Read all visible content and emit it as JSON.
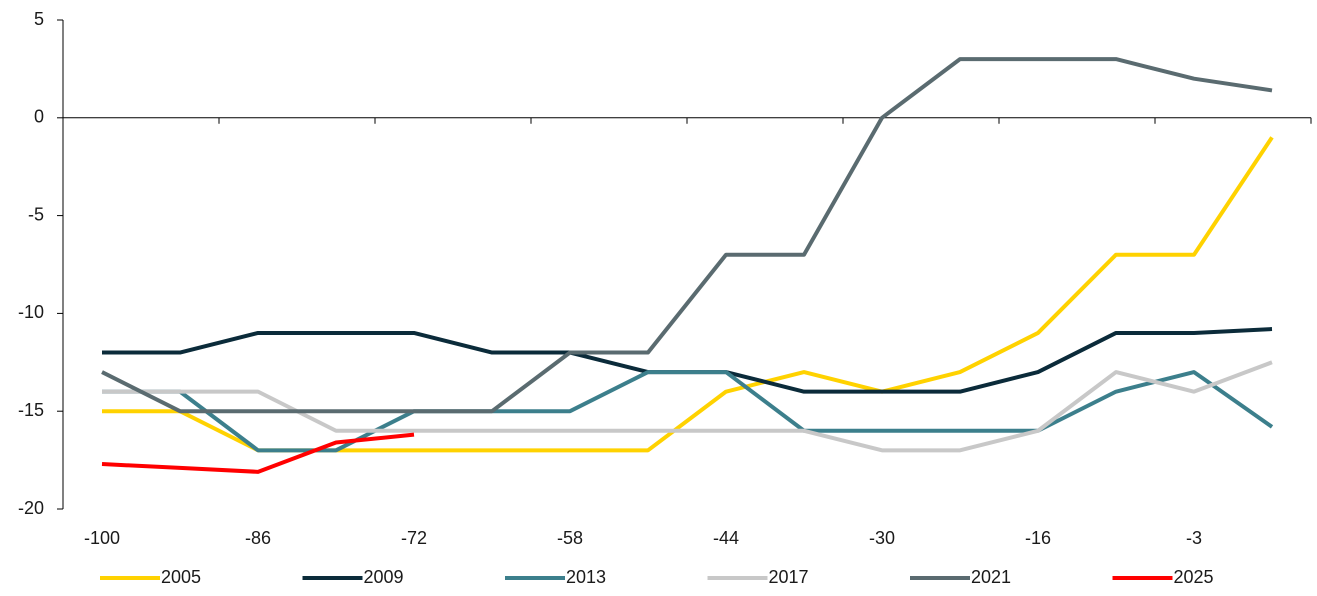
{
  "chart_data": {
    "type": "line",
    "categories": [
      "-100",
      null,
      "-86",
      null,
      "-72",
      null,
      "-58",
      null,
      "-44",
      null,
      "-30",
      null,
      "-16",
      null,
      "-3",
      null
    ],
    "series": [
      {
        "name": "2005",
        "color": "#FFD200",
        "values": [
          -15,
          -15,
          -17,
          -17,
          -17,
          -17,
          -17,
          -17,
          -14,
          -13,
          -14,
          -13,
          -11,
          -7,
          -7,
          -1
        ]
      },
      {
        "name": "2009",
        "color": "#0B2B3A",
        "values": [
          -12,
          -12,
          -11,
          -11,
          -11,
          -12,
          -12,
          -13,
          -13,
          -14,
          -14,
          -14,
          -13,
          -11,
          -11,
          -10.8
        ]
      },
      {
        "name": "2013",
        "color": "#3C7F8C",
        "values": [
          -14,
          -14,
          -17,
          -17,
          -15,
          -15,
          -15,
          -13,
          -13,
          -16,
          -16,
          -16,
          -16,
          -14,
          -13,
          -15.8
        ]
      },
      {
        "name": "2017",
        "color": "#C8C8C8",
        "values": [
          -14,
          -14,
          -14,
          -16,
          -16,
          -16,
          -16,
          -16,
          -16,
          -16,
          -17,
          -17,
          -16,
          -13,
          -14,
          -12.5
        ]
      },
      {
        "name": "2021",
        "color": "#5A6B70",
        "values": [
          -13,
          -15,
          -15,
          -15,
          -15,
          -15,
          -12,
          -12,
          -7,
          -7,
          0,
          3,
          3,
          3,
          2,
          1.4
        ]
      },
      {
        "name": "2025",
        "color": "#FF0000",
        "values": [
          -17.7,
          -17.9,
          -18.1,
          -16.6,
          -16.2,
          null,
          null,
          null,
          null,
          null,
          null,
          null,
          null,
          null,
          null,
          null
        ]
      }
    ],
    "ylim": [
      -20,
      5
    ],
    "yticks": [
      -20,
      -15,
      -10,
      -5,
      0,
      5
    ]
  }
}
